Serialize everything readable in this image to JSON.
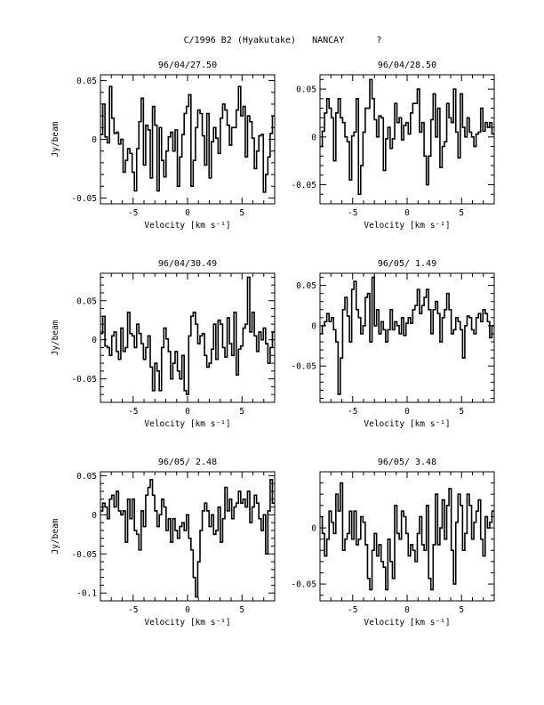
{
  "page_title": "C/1996 B2 (Hyakutake)   NANCAY      ?",
  "chart_data": [
    {
      "type": "line",
      "style": "step",
      "title": "96/04/27.50",
      "xlabel": "Velocity [km s⁻¹]",
      "ylabel": "Jy/beam",
      "xlim": [
        -8,
        8
      ],
      "ylim": [
        -0.055,
        0.055
      ],
      "xticks": [
        -5,
        0,
        5
      ],
      "yticks": [
        -0.05,
        0,
        0.05
      ],
      "ytick_labels": [
        "-0.05",
        "0",
        "0.05"
      ],
      "values": [
        0.004,
        0.03,
        0.002,
        -0.003,
        0.045,
        0.018,
        0.005,
        0.006,
        -0.004,
        0.0,
        -0.028,
        -0.018,
        -0.008,
        -0.012,
        -0.028,
        -0.044,
        -0.008,
        0.015,
        0.035,
        -0.022,
        0.012,
        0.008,
        -0.033,
        0.028,
        0.012,
        -0.044,
        0.01,
        -0.018,
        -0.032,
        -0.01,
        0.002,
        0.006,
        -0.01,
        0.008,
        -0.04,
        -0.015,
        0.004,
        0.022,
        0.028,
        0.038,
        -0.04,
        -0.018,
        0.01,
        0.025,
        0.022,
        0.003,
        -0.022,
        0.022,
        -0.033,
        -0.002,
        0.01,
        0.001,
        -0.012,
        0.018,
        0.03,
        0.025,
        0.012,
        -0.005,
        0.01,
        0.01,
        0.025,
        0.045,
        0.02,
        0.028,
        -0.015,
        0.02,
        0.015,
        0.001,
        -0.025,
        -0.01,
        0.003,
        0.004,
        -0.045,
        -0.03,
        -0.015,
        0.005,
        0.02
      ]
    },
    {
      "type": "line",
      "style": "step",
      "title": "96/04/28.50",
      "xlabel": "Velocity [km s⁻¹]",
      "ylabel": "",
      "xlim": [
        -8,
        8
      ],
      "ylim": [
        -0.07,
        0.065
      ],
      "xticks": [
        -5,
        0,
        5
      ],
      "yticks": [
        -0.05,
        0,
        0.05
      ],
      "ytick_labels": [
        "-0.05",
        "0",
        "0.05"
      ],
      "values": [
        -0.01,
        0.006,
        0.025,
        0.04,
        0.03,
        0.02,
        -0.025,
        0.025,
        0.04,
        0.02,
        0.015,
        0.0,
        -0.005,
        -0.045,
        0.001,
        0.005,
        0.04,
        -0.06,
        -0.03,
        0.005,
        0.03,
        0.03,
        0.06,
        0.04,
        0.018,
        0.0,
        0.022,
        0.02,
        -0.035,
        -0.002,
        0.01,
        -0.012,
        -0.002,
        0.035,
        0.015,
        0.02,
        -0.003,
        0.012,
        0.015,
        0.003,
        0.025,
        0.035,
        0.035,
        0.05,
        0.005,
        0.015,
        -0.02,
        -0.05,
        -0.02,
        0.018,
        0.045,
        0.0,
        0.03,
        -0.032,
        -0.01,
        -0.005,
        0.035,
        0.02,
        0.015,
        0.05,
        0.005,
        -0.022,
        0.045,
        0.01,
        0.0,
        0.02,
        0.005,
        0.0,
        -0.01,
        0.003,
        0.005,
        0.03,
        0.006,
        0.015,
        0.01,
        0.015,
        0.003
      ]
    },
    {
      "type": "line",
      "style": "step",
      "title": "96/04/30.49",
      "xlabel": "Velocity [km s⁻¹]",
      "ylabel": "Jy/beam",
      "xlim": [
        -8,
        8
      ],
      "ylim": [
        -0.08,
        0.085
      ],
      "xticks": [
        -5,
        0,
        5
      ],
      "yticks": [
        -0.05,
        0,
        0.05
      ],
      "ytick_labels": [
        "-0.05",
        "0",
        "0.05"
      ],
      "values": [
        0.008,
        0.03,
        -0.008,
        -0.01,
        -0.02,
        0.005,
        0.01,
        -0.015,
        -0.025,
        0.015,
        -0.015,
        -0.01,
        0.035,
        0.008,
        0.005,
        -0.01,
        0.02,
        0.008,
        -0.005,
        -0.025,
        -0.01,
        0.005,
        -0.035,
        -0.065,
        -0.03,
        -0.04,
        -0.065,
        -0.01,
        0.015,
        0.001,
        -0.015,
        -0.05,
        -0.03,
        -0.015,
        -0.04,
        -0.05,
        -0.02,
        -0.065,
        -0.07,
        0.005,
        0.03,
        0.035,
        0.02,
        -0.005,
        0.005,
        0.008,
        -0.02,
        -0.035,
        -0.03,
        -0.012,
        0.02,
        -0.025,
        0.025,
        0.02,
        -0.01,
        -0.022,
        0.028,
        -0.005,
        -0.02,
        0.035,
        -0.045,
        -0.012,
        -0.008,
        0.015,
        0.02,
        0.08,
        0.01,
        0.035,
        0.005,
        -0.015,
        0.01,
        0.0,
        0.015,
        -0.005,
        -0.03,
        -0.01,
        0.01
      ]
    },
    {
      "type": "line",
      "style": "step",
      "title": "96/05/ 1.49",
      "xlabel": "Velocity [km s⁻¹]",
      "ylabel": "",
      "xlim": [
        -8,
        8
      ],
      "ylim": [
        -0.095,
        0.065
      ],
      "xticks": [
        -5,
        0,
        5
      ],
      "yticks": [
        -0.05,
        0,
        0.05
      ],
      "ytick_labels": [
        "-0.05",
        "0",
        "0.05"
      ],
      "values": [
        -0.01,
        0.0,
        0.005,
        0.015,
        0.005,
        0.01,
        -0.005,
        -0.02,
        -0.085,
        -0.04,
        0.02,
        0.035,
        0.012,
        -0.02,
        0.045,
        0.055,
        0.02,
        0.01,
        -0.01,
        0.0,
        0.035,
        0.04,
        -0.02,
        0.06,
        0.0,
        0.02,
        -0.01,
        0.005,
        -0.005,
        -0.02,
        -0.005,
        0.02,
        -0.005,
        0.005,
        0.0,
        -0.01,
        0.01,
        -0.012,
        0.003,
        0.01,
        0.003,
        0.02,
        0.025,
        0.045,
        0.015,
        0.025,
        0.035,
        0.045,
        0.02,
        -0.01,
        0.02,
        0.03,
        0.015,
        -0.02,
        0.01,
        0.02,
        0.04,
        0.02,
        -0.01,
        -0.005,
        0.01,
        0.005,
        -0.005,
        -0.04,
        0.0,
        0.012,
        0.01,
        -0.005,
        -0.01,
        0.01,
        0.015,
        0.005,
        0.02,
        0.015,
        0.005,
        -0.015,
        0.0
      ]
    },
    {
      "type": "line",
      "style": "step",
      "title": "96/05/ 2.48",
      "xlabel": "Velocity [km s⁻¹]",
      "ylabel": "Jy/beam",
      "xlim": [
        -8,
        8
      ],
      "ylim": [
        -0.11,
        0.055
      ],
      "xticks": [
        -5,
        0,
        5
      ],
      "yticks": [
        -0.1,
        -0.05,
        0,
        0.05
      ],
      "ytick_labels": [
        "-0.1",
        "-0.05",
        "0",
        "0.05"
      ],
      "values": [
        0.005,
        0.015,
        0.01,
        -0.005,
        0.02,
        0.025,
        0.01,
        0.03,
        0.005,
        0.0,
        0.005,
        -0.035,
        0.02,
        -0.005,
        0.02,
        -0.02,
        -0.025,
        -0.045,
        0.005,
        -0.015,
        0.025,
        0.035,
        0.045,
        0.025,
        0.005,
        -0.015,
        0.0,
        0.02,
        0.01,
        -0.02,
        -0.005,
        -0.035,
        -0.005,
        -0.02,
        -0.03,
        -0.015,
        -0.01,
        -0.02,
        0.0,
        -0.03,
        -0.045,
        -0.08,
        -0.105,
        -0.06,
        -0.02,
        0.005,
        0.015,
        0.005,
        -0.015,
        0.0,
        -0.025,
        -0.02,
        0.01,
        -0.035,
        -0.005,
        0.035,
        0.005,
        0.02,
        -0.005,
        0.01,
        0.015,
        0.03,
        0.015,
        0.02,
        0.01,
        0.03,
        -0.01,
        0.01,
        0.025,
        0.015,
        -0.005,
        -0.02,
        0.0,
        -0.05,
        0.005,
        0.045,
        0.015
      ]
    },
    {
      "type": "line",
      "style": "step",
      "title": "96/05/ 3.48",
      "xlabel": "Velocity [km s⁻¹]",
      "ylabel": "",
      "xlim": [
        -8,
        8
      ],
      "ylim": [
        -0.065,
        0.05
      ],
      "xticks": [
        -5,
        0,
        5
      ],
      "yticks": [
        -0.05,
        0
      ],
      "ytick_labels": [
        "-0.05",
        "0"
      ],
      "values": [
        0.01,
        -0.005,
        -0.025,
        -0.01,
        0.015,
        0.005,
        -0.005,
        0.03,
        0.015,
        0.04,
        -0.02,
        -0.01,
        -0.005,
        0.015,
        -0.01,
        0.015,
        -0.015,
        -0.01,
        0.01,
        0.005,
        -0.015,
        -0.045,
        -0.055,
        -0.02,
        -0.005,
        -0.025,
        -0.015,
        -0.03,
        -0.035,
        -0.055,
        -0.01,
        -0.03,
        -0.045,
        0.02,
        -0.005,
        -0.01,
        0.015,
        0.01,
        -0.005,
        -0.025,
        -0.015,
        -0.02,
        -0.03,
        -0.005,
        0.01,
        -0.015,
        -0.02,
        0.02,
        -0.045,
        -0.055,
        -0.015,
        0.03,
        -0.015,
        0.0,
        0.025,
        -0.01,
        0.02,
        0.035,
        -0.02,
        -0.05,
        0.005,
        0.03,
        0.02,
        -0.02,
        -0.005,
        0.03,
        0.02,
        -0.01,
        0.005,
        0.015,
        0.025,
        -0.01,
        -0.025,
        0.01,
        0.0,
        0.005,
        0.015
      ]
    }
  ]
}
